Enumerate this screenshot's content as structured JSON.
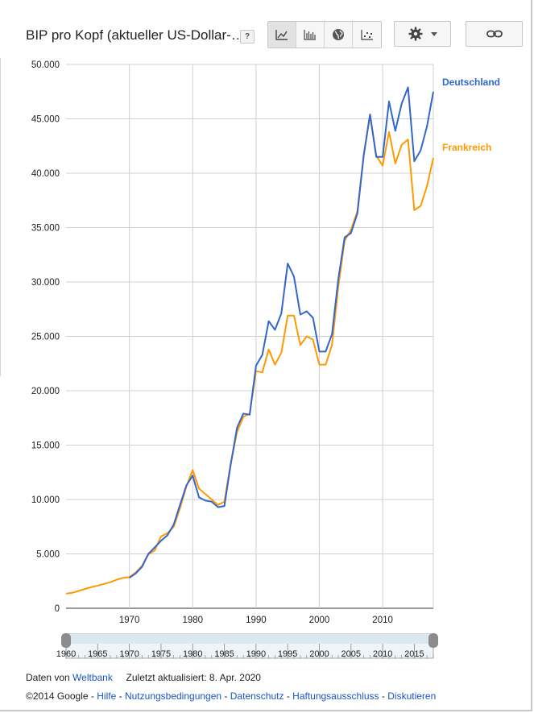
{
  "header": {
    "title": "BIP pro Kopf (aktueller US-Dollar-…",
    "help_label": "?",
    "view_buttons": [
      "line-chart",
      "bar-chart",
      "map",
      "scatter"
    ]
  },
  "chart_data": {
    "type": "line",
    "ylim": [
      0,
      50000
    ],
    "xlim": [
      1960,
      2018
    ],
    "yticks": [
      {
        "v": 0,
        "label": "0"
      },
      {
        "v": 5000,
        "label": "5.000"
      },
      {
        "v": 10000,
        "label": "10.000"
      },
      {
        "v": 15000,
        "label": "15.000"
      },
      {
        "v": 20000,
        "label": "20.000"
      },
      {
        "v": 25000,
        "label": "25.000"
      },
      {
        "v": 30000,
        "label": "30.000"
      },
      {
        "v": 35000,
        "label": "35.000"
      },
      {
        "v": 40000,
        "label": "40.000"
      },
      {
        "v": 45000,
        "label": "45.000"
      },
      {
        "v": 50000,
        "label": "50.000"
      }
    ],
    "xticks": [
      1970,
      1980,
      1990,
      2000,
      2010
    ],
    "grid": true,
    "legend": "right-end labels",
    "series": [
      {
        "name": "Deutschland",
        "color": "#3366cc",
        "x": [
          1970,
          1971,
          1972,
          1973,
          1974,
          1975,
          1976,
          1977,
          1978,
          1979,
          1980,
          1981,
          1982,
          1983,
          1984,
          1985,
          1986,
          1987,
          1988,
          1989,
          1990,
          1991,
          1992,
          1993,
          1994,
          1995,
          1996,
          1997,
          1998,
          1999,
          2000,
          2001,
          2002,
          2003,
          2004,
          2005,
          2006,
          2007,
          2008,
          2009,
          2010,
          2011,
          2012,
          2013,
          2014,
          2015,
          2016,
          2017,
          2018
        ],
        "values": [
          2800,
          3200,
          3800,
          5000,
          5600,
          6200,
          6700,
          7700,
          9500,
          11300,
          12200,
          10200,
          9900,
          9800,
          9300,
          9400,
          13200,
          16600,
          17900,
          17800,
          22300,
          23300,
          26400,
          25600,
          27100,
          31700,
          30500,
          27000,
          27300,
          26700,
          23600,
          23600,
          25200,
          30300,
          34100,
          34500,
          36300,
          41600,
          45400,
          41500,
          41500,
          46600,
          43900,
          46400,
          47900,
          41100,
          42100,
          44300,
          47500
        ]
      },
      {
        "name": "Frankreich",
        "color": "#ff9900",
        "x": [
          1960,
          1961,
          1962,
          1963,
          1964,
          1965,
          1966,
          1967,
          1968,
          1969,
          1970,
          1971,
          1972,
          1973,
          1974,
          1975,
          1976,
          1977,
          1978,
          1979,
          1980,
          1981,
          1982,
          1983,
          1984,
          1985,
          1986,
          1987,
          1988,
          1989,
          1990,
          1991,
          1992,
          1993,
          1994,
          1995,
          1996,
          1997,
          1998,
          1999,
          2000,
          2001,
          2002,
          2003,
          2004,
          2005,
          2006,
          2007,
          2008,
          2009,
          2010,
          2011,
          2012,
          2013,
          2014,
          2015,
          2016,
          2017,
          2018
        ],
        "values": [
          1340,
          1430,
          1590,
          1780,
          1950,
          2080,
          2240,
          2390,
          2630,
          2800,
          2860,
          3300,
          3900,
          4960,
          5310,
          6600,
          6900,
          7500,
          9200,
          11200,
          12700,
          11000,
          10500,
          10000,
          9500,
          9800,
          13300,
          16200,
          17600,
          17900,
          21800,
          21700,
          23800,
          22400,
          23500,
          26900,
          26900,
          24200,
          25000,
          24700,
          22400,
          22400,
          24200,
          29600,
          33800,
          34800,
          36500,
          41600,
          45400,
          41600,
          40700,
          43800,
          40900,
          42600,
          43100,
          36600,
          37000,
          38800,
          41400
        ]
      }
    ]
  },
  "range_selector": {
    "ticks": [
      "1960",
      "1965",
      "1970",
      "1975",
      "1980",
      "1985",
      "1990",
      "1995",
      "2000",
      "2005",
      "2010",
      "2015"
    ]
  },
  "footer": {
    "source_prefix": "Daten von",
    "source_link": "Weltbank",
    "updated": "Zuletzt aktualisiert: 8. Apr. 2020",
    "copyright": "©2014 Google",
    "sep": "-",
    "links": [
      "Hilfe",
      "Nutzungsbedingungen",
      "Datenschutz",
      "Haftungsausschluss",
      "Diskutieren"
    ]
  }
}
